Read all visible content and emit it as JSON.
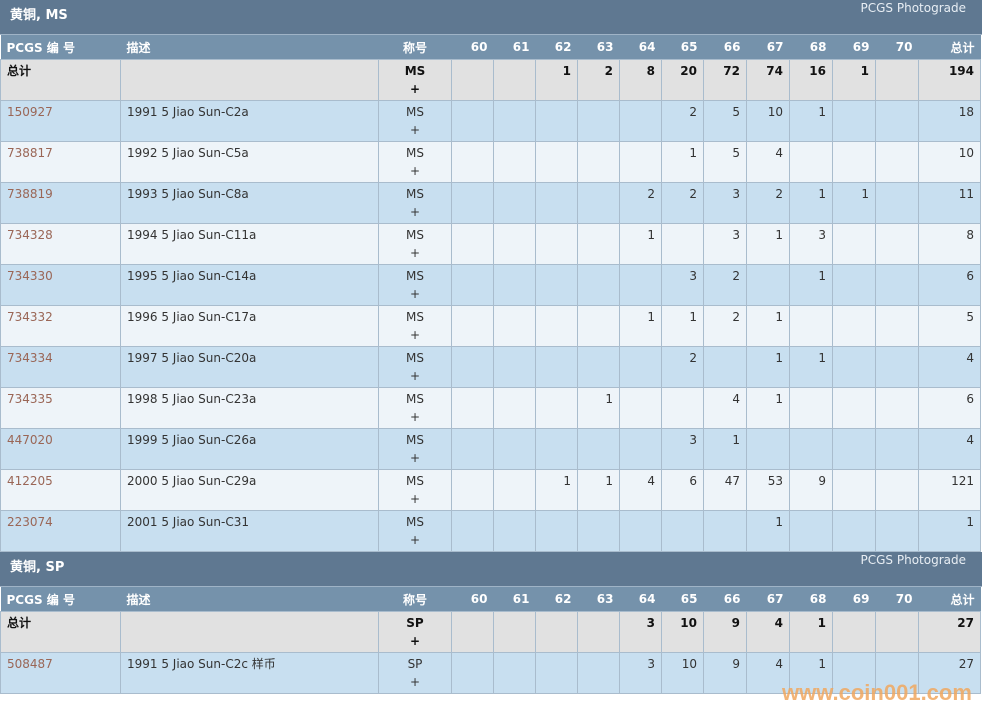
{
  "columns": {
    "id": "PCGS 编 号",
    "desc": "描述",
    "desig": "称号",
    "grades": [
      "60",
      "61",
      "62",
      "63",
      "64",
      "65",
      "66",
      "67",
      "68",
      "69",
      "70"
    ],
    "total": "总计"
  },
  "sections": [
    {
      "title": "黄铜, MS",
      "link": "PCGS Photograde",
      "total_row": {
        "label": "总计",
        "desig": "MS",
        "plus": "+",
        "grades": [
          "",
          "",
          "1",
          "2",
          "8",
          "20",
          "72",
          "74",
          "16",
          "1",
          ""
        ],
        "total": "194"
      },
      "rows": [
        {
          "id": "150927",
          "desc": "1991 5 Jiao Sun-C2a",
          "desig": "MS",
          "plus": "+",
          "grades": [
            "",
            "",
            "",
            "",
            "",
            "2",
            "5",
            "10",
            "1",
            "",
            ""
          ],
          "total": "18"
        },
        {
          "id": "738817",
          "desc": "1992 5 Jiao Sun-C5a",
          "desig": "MS",
          "plus": "+",
          "grades": [
            "",
            "",
            "",
            "",
            "",
            "1",
            "5",
            "4",
            "",
            "",
            ""
          ],
          "total": "10"
        },
        {
          "id": "738819",
          "desc": "1993 5 Jiao Sun-C8a",
          "desig": "MS",
          "plus": "+",
          "grades": [
            "",
            "",
            "",
            "",
            "2",
            "2",
            "3",
            "2",
            "1",
            "1",
            ""
          ],
          "total": "11"
        },
        {
          "id": "734328",
          "desc": "1994 5 Jiao Sun-C11a",
          "desig": "MS",
          "plus": "+",
          "grades": [
            "",
            "",
            "",
            "",
            "1",
            "",
            "3",
            "1",
            "3",
            "",
            ""
          ],
          "total": "8"
        },
        {
          "id": "734330",
          "desc": "1995 5 Jiao Sun-C14a",
          "desig": "MS",
          "plus": "+",
          "grades": [
            "",
            "",
            "",
            "",
            "",
            "3",
            "2",
            "",
            "1",
            "",
            ""
          ],
          "total": "6"
        },
        {
          "id": "734332",
          "desc": "1996 5 Jiao Sun-C17a",
          "desig": "MS",
          "plus": "+",
          "grades": [
            "",
            "",
            "",
            "",
            "1",
            "1",
            "2",
            "1",
            "",
            "",
            ""
          ],
          "total": "5"
        },
        {
          "id": "734334",
          "desc": "1997 5 Jiao Sun-C20a",
          "desig": "MS",
          "plus": "+",
          "grades": [
            "",
            "",
            "",
            "",
            "",
            "2",
            "",
            "1",
            "1",
            "",
            ""
          ],
          "total": "4"
        },
        {
          "id": "734335",
          "desc": "1998 5 Jiao Sun-C23a",
          "desig": "MS",
          "plus": "+",
          "grades": [
            "",
            "",
            "",
            "1",
            "",
            "",
            "4",
            "1",
            "",
            "",
            ""
          ],
          "total": "6"
        },
        {
          "id": "447020",
          "desc": "1999 5 Jiao Sun-C26a",
          "desig": "MS",
          "plus": "+",
          "grades": [
            "",
            "",
            "",
            "",
            "",
            "3",
            "1",
            "",
            "",
            "",
            ""
          ],
          "total": "4"
        },
        {
          "id": "412205",
          "desc": "2000 5 Jiao Sun-C29a",
          "desig": "MS",
          "plus": "+",
          "grades": [
            "",
            "",
            "1",
            "1",
            "4",
            "6",
            "47",
            "53",
            "9",
            "",
            ""
          ],
          "total": "121"
        },
        {
          "id": "223074",
          "desc": "2001 5 Jiao Sun-C31",
          "desig": "MS",
          "plus": "+",
          "grades": [
            "",
            "",
            "",
            "",
            "",
            "",
            "",
            "1",
            "",
            "",
            ""
          ],
          "total": "1"
        }
      ]
    },
    {
      "title": "黄铜, SP",
      "link": "PCGS Photograde",
      "total_row": {
        "label": "总计",
        "desig": "SP",
        "plus": "+",
        "grades": [
          "",
          "",
          "",
          "",
          "3",
          "10",
          "9",
          "4",
          "1",
          "",
          ""
        ],
        "total": "27"
      },
      "rows": [
        {
          "id": "508487",
          "desc": "1991 5 Jiao Sun-C2c 样币",
          "desig": "SP",
          "plus": "+",
          "grades": [
            "",
            "",
            "",
            "",
            "3",
            "10",
            "9",
            "4",
            "1",
            "",
            ""
          ],
          "total": "27"
        }
      ]
    }
  ],
  "watermark": "www.coin001.com"
}
